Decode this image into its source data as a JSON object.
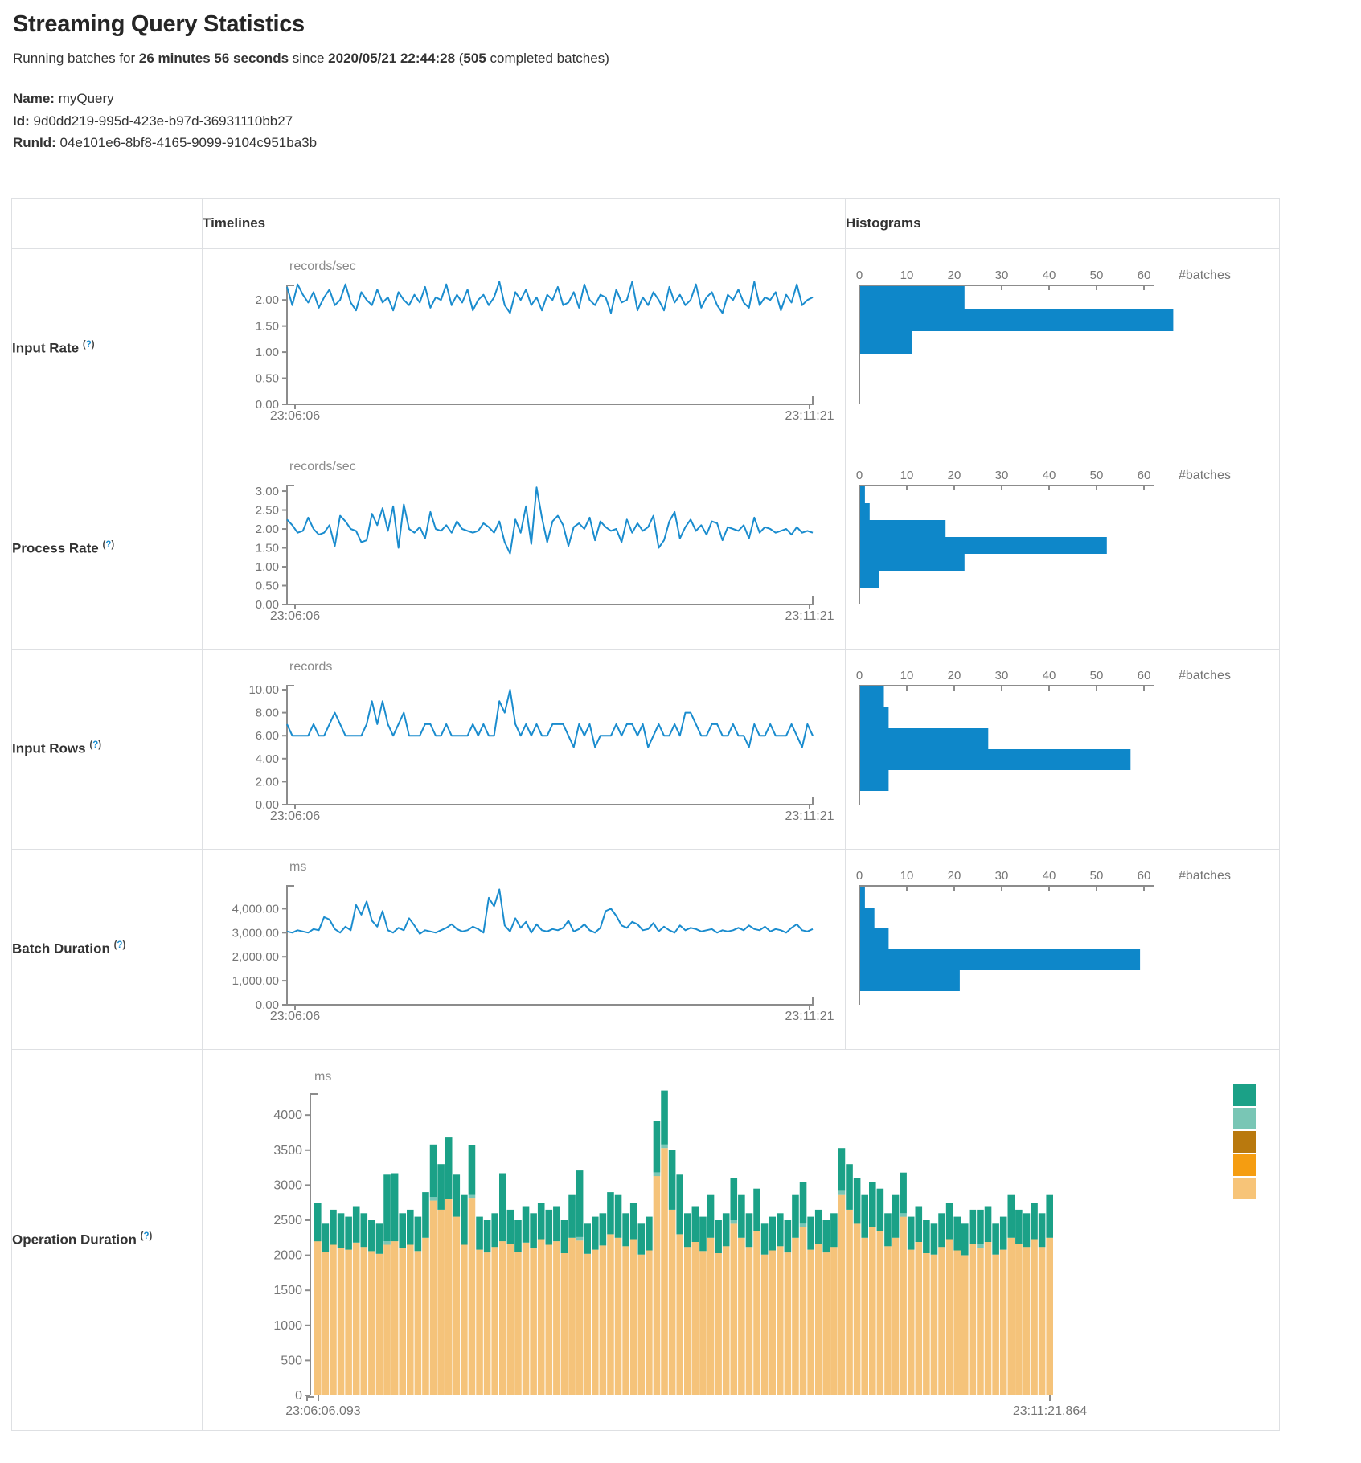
{
  "page": {
    "title": "Streaming Query Statistics",
    "subtitle": {
      "prefix": "Running batches for ",
      "duration": "26 minutes 56 seconds",
      "middle": " since ",
      "start_time": "2020/05/21 22:44:28",
      "paren_open": " (",
      "batches": "505",
      "suffix": " completed batches)"
    },
    "meta": {
      "name_label": "Name:",
      "name_value": " myQuery",
      "id_label": "Id:",
      "id_value": " 9d0dd219-995d-423e-b97d-36931110bb27",
      "runid_label": "RunId:",
      "runid_value": " 04e101e6-8bf8-4165-9099-9104c951ba3b"
    }
  },
  "table": {
    "help_mark": "?",
    "headers": {
      "timelines": "Timelines",
      "histograms": "Histograms"
    },
    "rows": [
      {
        "label": "Input Rate"
      },
      {
        "label": "Process Rate"
      },
      {
        "label": "Input Rows"
      },
      {
        "label": "Batch Duration"
      },
      {
        "label": "Operation Duration"
      }
    ]
  },
  "colors": {
    "line": "#1a8cce",
    "hist_bar": "#0e87c9",
    "axis": "#8c8c8c",
    "stack_green": "#1ba187",
    "stack_teal": "#79c6b5",
    "stack_brown": "#b9790e",
    "stack_orange": "#f59d11",
    "stack_tan": "#f5c37a"
  },
  "chart_data": {
    "x_start": "23:06:06",
    "x_end": "23:11:21",
    "histogram_xticks": [
      0,
      10,
      20,
      30,
      40,
      50,
      60
    ],
    "histogram_xlabel": "#batches",
    "input_rate": {
      "timeline": {
        "type": "line",
        "unit": "records/sec",
        "ylim": [
          0,
          2.28
        ],
        "ytick_values": [
          2.0,
          1.5,
          1.0,
          0.5,
          0
        ],
        "ytick_labels": [
          "2.00",
          "1.50",
          "1.00",
          "0.50",
          "0.00"
        ],
        "values": [
          2.25,
          1.9,
          2.3,
          2.1,
          1.95,
          2.15,
          1.85,
          2.05,
          2.2,
          1.9,
          2.0,
          2.3,
          1.95,
          1.8,
          2.15,
          2.0,
          1.9,
          2.2,
          1.95,
          2.05,
          1.8,
          2.15,
          2.0,
          1.9,
          2.1,
          1.95,
          2.25,
          1.85,
          2.05,
          2.0,
          2.3,
          1.9,
          2.1,
          1.95,
          2.2,
          1.8,
          2.0,
          2.1,
          1.9,
          2.05,
          2.35,
          1.9,
          1.75,
          2.15,
          2.0,
          2.2,
          1.9,
          2.05,
          1.8,
          2.1,
          2.0,
          2.25,
          1.9,
          1.95,
          2.15,
          1.85,
          2.3,
          2.0,
          1.9,
          2.1,
          2.05,
          1.75,
          2.2,
          1.95,
          2.0,
          2.35,
          1.8,
          2.05,
          1.9,
          2.15,
          2.0,
          1.8,
          2.25,
          1.95,
          2.1,
          1.9,
          2.0,
          2.3,
          1.85,
          2.05,
          2.15,
          1.9,
          1.75,
          2.1,
          2.0,
          2.2,
          1.95,
          1.85,
          2.35,
          1.9,
          2.05,
          2.0,
          2.15,
          1.8,
          2.1,
          1.95,
          2.3,
          1.9,
          2.0,
          2.05
        ]
      },
      "histogram": {
        "type": "bar-horizontal",
        "bars": [
          22,
          66,
          11
        ]
      }
    },
    "process_rate": {
      "timeline": {
        "type": "line",
        "unit": "records/sec",
        "ylim": [
          0,
          3.15
        ],
        "ytick_values": [
          3.0,
          2.5,
          2.0,
          1.5,
          1.0,
          0.5,
          0
        ],
        "ytick_labels": [
          "3.00",
          "2.50",
          "2.00",
          "1.50",
          "1.00",
          "0.50",
          "0.00"
        ],
        "values": [
          2.25,
          2.1,
          1.9,
          1.95,
          2.3,
          2.0,
          1.85,
          1.9,
          2.1,
          1.55,
          2.35,
          2.2,
          2.0,
          1.95,
          1.65,
          1.7,
          2.4,
          2.1,
          2.55,
          1.95,
          2.6,
          1.5,
          2.65,
          2.0,
          1.9,
          2.05,
          1.75,
          2.45,
          2.0,
          1.95,
          2.1,
          1.9,
          2.2,
          2.0,
          1.95,
          1.9,
          1.95,
          2.15,
          2.05,
          1.9,
          2.2,
          1.65,
          1.35,
          2.25,
          1.9,
          2.6,
          1.6,
          3.1,
          2.3,
          1.65,
          2.2,
          2.35,
          2.1,
          1.55,
          2.05,
          2.15,
          2.0,
          2.3,
          1.7,
          2.2,
          2.05,
          1.95,
          2.0,
          1.65,
          2.25,
          1.9,
          2.15,
          1.95,
          2.05,
          2.35,
          1.5,
          1.7,
          2.2,
          2.45,
          1.75,
          2.05,
          2.25,
          1.95,
          2.1,
          1.85,
          2.2,
          2.15,
          1.7,
          2.05,
          2.0,
          1.95,
          2.1,
          1.75,
          2.3,
          1.9,
          2.05,
          2.0,
          1.9,
          1.95,
          2.0,
          1.85,
          2.05,
          1.9,
          1.95,
          1.9
        ]
      },
      "histogram": {
        "type": "bar-horizontal",
        "bars": [
          1,
          2,
          18,
          52,
          22,
          4
        ]
      }
    },
    "input_rows": {
      "timeline": {
        "type": "line",
        "unit": "records",
        "ylim": [
          0,
          10.35
        ],
        "ytick_values": [
          10,
          8,
          6,
          4,
          2,
          0
        ],
        "ytick_labels": [
          "10.00",
          "8.00",
          "6.00",
          "4.00",
          "2.00",
          "0.00"
        ],
        "values": [
          7,
          6,
          6,
          6,
          6,
          7,
          6,
          6,
          7,
          8,
          7,
          6,
          6,
          6,
          6,
          7,
          9,
          7,
          9,
          7,
          6,
          7,
          8,
          6,
          6,
          6,
          7,
          7,
          6,
          6,
          7,
          6,
          6,
          6,
          6,
          7,
          6,
          7,
          6,
          6,
          9,
          8,
          10,
          7,
          6,
          7,
          6,
          7,
          6,
          6,
          7,
          7,
          7,
          6,
          5,
          7,
          6,
          7,
          5,
          6,
          6,
          6,
          7,
          6,
          7,
          7,
          6,
          7,
          5,
          6,
          7,
          6,
          6,
          7,
          6,
          8,
          8,
          7,
          6,
          6,
          7,
          7,
          6,
          6,
          7,
          6,
          6,
          5,
          7,
          6,
          6,
          7,
          6,
          6,
          6,
          7,
          6,
          5,
          7,
          6
        ]
      },
      "histogram": {
        "type": "bar-horizontal",
        "bars": [
          5,
          6,
          27,
          57,
          6
        ]
      }
    },
    "batch_duration": {
      "timeline": {
        "type": "line",
        "unit": "ms",
        "ylim": [
          0,
          4950
        ],
        "ytick_values": [
          4000,
          3000,
          2000,
          1000,
          0
        ],
        "ytick_labels": [
          "4,000.00",
          "3,000.00",
          "2,000.00",
          "1,000.00",
          "0.00"
        ],
        "values": [
          3050,
          3000,
          3100,
          3050,
          3000,
          3150,
          3100,
          3650,
          3550,
          3150,
          3000,
          3250,
          3100,
          4150,
          3750,
          4300,
          3500,
          3250,
          3900,
          3100,
          3000,
          3200,
          3100,
          3600,
          3300,
          2950,
          3100,
          3050,
          3000,
          3100,
          3200,
          3350,
          3150,
          3050,
          3100,
          3250,
          3150,
          3000,
          4450,
          4100,
          4800,
          3300,
          3050,
          3600,
          3200,
          3450,
          3000,
          3350,
          3100,
          3050,
          3150,
          3100,
          3200,
          3500,
          3050,
          3150,
          3350,
          3100,
          3000,
          3200,
          3900,
          4000,
          3700,
          3300,
          3200,
          3450,
          3350,
          3100,
          3150,
          3400,
          3050,
          3250,
          3100,
          3000,
          3300,
          3100,
          3200,
          3150,
          3050,
          3100,
          3150,
          3000,
          3100,
          3050,
          3100,
          3200,
          3100,
          3300,
          3150,
          3100,
          3250,
          3050,
          3150,
          3100,
          3000,
          3200,
          3350,
          3100,
          3050,
          3150
        ]
      },
      "histogram": {
        "type": "bar-horizontal",
        "bars": [
          1,
          3,
          6,
          59,
          21
        ]
      }
    },
    "operation_duration": {
      "type": "stacked-bar",
      "unit": "ms",
      "x_start": "23:06:06.093",
      "x_end": "23:11:21.864",
      "ylim": [
        0,
        4300
      ],
      "ytick_values": [
        4000,
        3500,
        3000,
        2500,
        2000,
        1500,
        1000,
        500,
        0
      ],
      "ytick_labels": [
        "4000",
        "3500",
        "3000",
        "2500",
        "2000",
        "1500",
        "1000",
        "500",
        "0"
      ],
      "legend_colors": [
        "#1ba187",
        "#79c6b5",
        "#b9790e",
        "#f59d11",
        "#f7c478"
      ],
      "series": {
        "base": [
          2200,
          2050,
          2150,
          2100,
          2080,
          2180,
          2120,
          2060,
          2020,
          2150,
          2200,
          2100,
          2150,
          2060,
          2250,
          2780,
          2650,
          2800,
          2550,
          2150,
          2820,
          2080,
          2040,
          2120,
          2200,
          2160,
          2050,
          2180,
          2110,
          2230,
          2150,
          2200,
          2030,
          2250,
          2210,
          2020,
          2080,
          2140,
          2300,
          2250,
          2130,
          2230,
          2010,
          2070,
          3130,
          3530,
          2650,
          2300,
          2120,
          2190,
          2060,
          2250,
          2030,
          2130,
          2450,
          2250,
          2120,
          2350,
          2010,
          2070,
          2130,
          2040,
          2250,
          2400,
          2080,
          2160,
          2040,
          2120,
          2870,
          2650,
          2450,
          2250,
          2400,
          2350,
          2130,
          2250,
          2550,
          2080,
          2190,
          2030,
          2010,
          2120,
          2230,
          2070,
          2000,
          2160,
          2110,
          2190,
          2010,
          2080,
          2250,
          2160,
          2120,
          2230,
          2120,
          2250
        ],
        "sliver": [
          0,
          0,
          0,
          0,
          0,
          0,
          0,
          0,
          0,
          50,
          0,
          0,
          0,
          0,
          0,
          50,
          0,
          0,
          0,
          0,
          50,
          0,
          0,
          0,
          0,
          0,
          0,
          0,
          0,
          0,
          0,
          0,
          0,
          0,
          50,
          0,
          0,
          0,
          0,
          0,
          0,
          0,
          0,
          0,
          50,
          50,
          0,
          0,
          0,
          0,
          0,
          0,
          0,
          0,
          50,
          0,
          0,
          0,
          0,
          0,
          0,
          0,
          0,
          50,
          0,
          0,
          0,
          0,
          50,
          0,
          0,
          0,
          0,
          0,
          0,
          0,
          50,
          0,
          0,
          0,
          0,
          0,
          0,
          0,
          0,
          0,
          50,
          0,
          0,
          0,
          0,
          0,
          0,
          0,
          0,
          0
        ],
        "green": [
          550,
          400,
          500,
          500,
          470,
          520,
          480,
          440,
          430,
          950,
          970,
          500,
          500,
          490,
          650,
          750,
          650,
          880,
          600,
          720,
          700,
          470,
          460,
          480,
          970,
          490,
          450,
          520,
          490,
          520,
          500,
          500,
          470,
          620,
          950,
          430,
          470,
          460,
          600,
          620,
          470,
          520,
          440,
          480,
          740,
          770,
          850,
          850,
          480,
          510,
          490,
          620,
          470,
          470,
          600,
          620,
          480,
          600,
          440,
          480,
          470,
          460,
          620,
          600,
          470,
          490,
          460,
          480,
          610,
          650,
          650,
          620,
          650,
          600,
          470,
          620,
          580,
          470,
          510,
          470,
          440,
          480,
          520,
          480,
          450,
          490,
          490,
          510,
          440,
          470,
          620,
          490,
          480,
          520,
          480,
          620
        ]
      }
    }
  }
}
